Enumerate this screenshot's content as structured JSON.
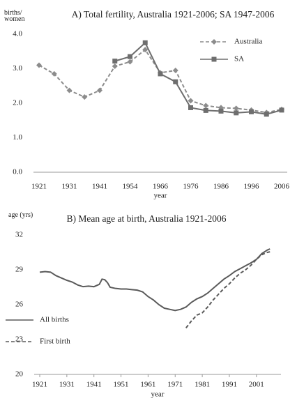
{
  "chart_data": [
    {
      "type": "line",
      "title": "A) Total fertility, Australia 1921-2006; SA 1947-2006",
      "y_label": "births/ women",
      "x_label": "year",
      "categories": [
        "1921",
        null,
        "1931",
        null,
        "1941",
        null,
        "1954",
        null,
        "1966",
        null,
        "1976",
        null,
        "1986",
        null,
        "1996",
        null,
        "2006"
      ],
      "series": [
        {
          "name": "Australia",
          "color": "#8c8c8c",
          "line_style": "dashed",
          "marker": "diamond",
          "values": [
            3.1,
            2.85,
            2.37,
            2.18,
            2.37,
            3.07,
            3.2,
            3.55,
            2.88,
            2.95,
            2.07,
            1.93,
            1.87,
            1.85,
            1.8,
            1.73,
            1.82
          ]
        },
        {
          "name": "SA",
          "color": "#6e6e6e",
          "line_style": "solid",
          "marker": "square",
          "values": [
            null,
            null,
            null,
            null,
            null,
            3.22,
            3.35,
            3.75,
            2.85,
            2.62,
            1.87,
            1.79,
            1.77,
            1.72,
            1.75,
            1.68,
            1.8
          ]
        }
      ],
      "ylim": [
        0,
        4
      ],
      "yticks": [
        {
          "value": 0,
          "label": "0.0"
        },
        {
          "value": 1,
          "label": "1.0"
        },
        {
          "value": 2,
          "label": "2.0"
        },
        {
          "value": 3,
          "label": "3.0"
        },
        {
          "value": 4,
          "label": "4.0"
        }
      ],
      "legend": "upper right"
    },
    {
      "type": "line",
      "title": "B) Mean age at birth, Australia 1921-2006",
      "y_label": "age (yrs)",
      "x_label": "year",
      "series": [
        {
          "name": "All births",
          "color": "#5a5a5a",
          "line_style": "solid",
          "x": [
            1921,
            1923,
            1925,
            1927,
            1929,
            1931,
            1933,
            1935,
            1937,
            1939,
            1941,
            1943,
            1944,
            1945,
            1946,
            1947,
            1949,
            1951,
            1953,
            1955,
            1957,
            1959,
            1961,
            1963,
            1965,
            1967,
            1969,
            1971,
            1973,
            1975,
            1977,
            1979,
            1981,
            1983,
            1985,
            1987,
            1989,
            1991,
            1993,
            1995,
            1997,
            1999,
            2001,
            2003,
            2005,
            2006
          ],
          "values": [
            28.8,
            28.85,
            28.8,
            28.5,
            28.3,
            28.1,
            27.95,
            27.7,
            27.55,
            27.6,
            27.55,
            27.75,
            28.2,
            28.15,
            27.9,
            27.5,
            27.4,
            27.35,
            27.35,
            27.3,
            27.25,
            27.1,
            26.7,
            26.4,
            26.0,
            25.7,
            25.6,
            25.5,
            25.6,
            25.8,
            26.2,
            26.5,
            26.7,
            27.0,
            27.4,
            27.8,
            28.2,
            28.5,
            28.85,
            29.1,
            29.35,
            29.6,
            29.9,
            30.4,
            30.7,
            30.8
          ]
        },
        {
          "name": "First birth",
          "color": "#5a5a5a",
          "line_style": "dashed",
          "x": [
            1975,
            1977,
            1979,
            1981,
            1983,
            1985,
            1987,
            1989,
            1991,
            1993,
            1995,
            1997,
            1999,
            2001,
            2003,
            2005,
            2006
          ],
          "values": [
            24.0,
            24.6,
            25.1,
            25.3,
            25.8,
            26.4,
            26.9,
            27.4,
            27.8,
            28.3,
            28.7,
            29.0,
            29.4,
            29.9,
            30.3,
            30.5,
            30.55
          ]
        }
      ],
      "xlim": [
        1921,
        2008
      ],
      "xticks": [
        1921,
        1931,
        1941,
        1951,
        1961,
        1971,
        1981,
        1991,
        2001
      ],
      "ylim": [
        20,
        32
      ],
      "yticks": [
        20,
        23,
        26,
        29,
        32
      ],
      "legend": "center left"
    }
  ]
}
